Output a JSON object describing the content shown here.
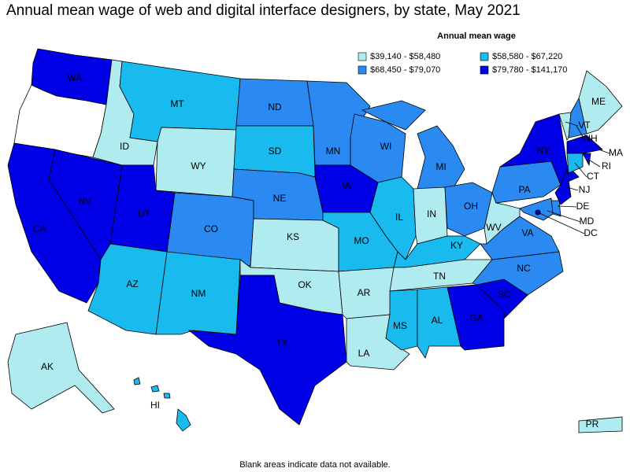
{
  "map": {
    "title": "Annual mean wage of web and digital interface designers, by state, May 2021",
    "legend": {
      "title": "Annual mean wage",
      "bins": [
        {
          "label": "$39,140 - $58,480",
          "color": "#b0ecef"
        },
        {
          "label": "$58,580 - $67,220",
          "color": "#19bbee"
        },
        {
          "label": "$68,450 - $79,070",
          "color": "#2a8af2"
        },
        {
          "label": "$79,780 - $141,170",
          "color": "#0000e6"
        }
      ]
    },
    "states": [
      {
        "label": "WA",
        "bin": 3
      },
      {
        "label": "CA",
        "bin": 3
      },
      {
        "label": "NV",
        "bin": 3
      },
      {
        "label": "ID",
        "bin": 0
      },
      {
        "label": "MT",
        "bin": 1
      },
      {
        "label": "WY",
        "bin": 0
      },
      {
        "label": "UT",
        "bin": 3
      },
      {
        "label": "CO",
        "bin": 2
      },
      {
        "label": "AZ",
        "bin": 1
      },
      {
        "label": "NM",
        "bin": 1
      },
      {
        "label": "ND",
        "bin": 2
      },
      {
        "label": "SD",
        "bin": 1
      },
      {
        "label": "NE",
        "bin": 2
      },
      {
        "label": "KS",
        "bin": 0
      },
      {
        "label": "OK",
        "bin": 0
      },
      {
        "label": "TX",
        "bin": 3
      },
      {
        "label": "MN",
        "bin": 2
      },
      {
        "label": "IA",
        "bin": 3
      },
      {
        "label": "MO",
        "bin": 1
      },
      {
        "label": "AR",
        "bin": 0
      },
      {
        "label": "LA",
        "bin": 0
      },
      {
        "label": "WI",
        "bin": 2
      },
      {
        "label": "IL",
        "bin": 1
      },
      {
        "label": "MI",
        "bin": 2
      },
      {
        "label": "IN",
        "bin": 0
      },
      {
        "label": "OH",
        "bin": 2
      },
      {
        "label": "KY",
        "bin": 1
      },
      {
        "label": "TN",
        "bin": 0
      },
      {
        "label": "MS",
        "bin": 1
      },
      {
        "label": "AL",
        "bin": 1
      },
      {
        "label": "GA",
        "bin": 3
      },
      {
        "label": "SC",
        "bin": 3
      },
      {
        "label": "NC",
        "bin": 2
      },
      {
        "label": "VA",
        "bin": 2
      },
      {
        "label": "WV",
        "bin": 0
      },
      {
        "label": "PA",
        "bin": 2
      },
      {
        "label": "NY",
        "bin": 3
      },
      {
        "label": "ME",
        "bin": 0
      },
      {
        "label": "VT",
        "bin": 0
      },
      {
        "label": "NH",
        "bin": 2
      },
      {
        "label": "MA",
        "bin": 3
      },
      {
        "label": "RI",
        "bin": 3
      },
      {
        "label": "CT",
        "bin": 1
      },
      {
        "label": "NJ",
        "bin": 3
      },
      {
        "label": "DE",
        "bin": 2
      },
      {
        "label": "MD",
        "bin": 2
      },
      {
        "label": "DC",
        "bin": 3
      },
      {
        "label": "AK",
        "bin": 0
      },
      {
        "label": "HI",
        "bin": 1
      },
      {
        "label": "PR",
        "bin": 0
      }
    ],
    "footnote": "Blank areas indicate data not available."
  }
}
